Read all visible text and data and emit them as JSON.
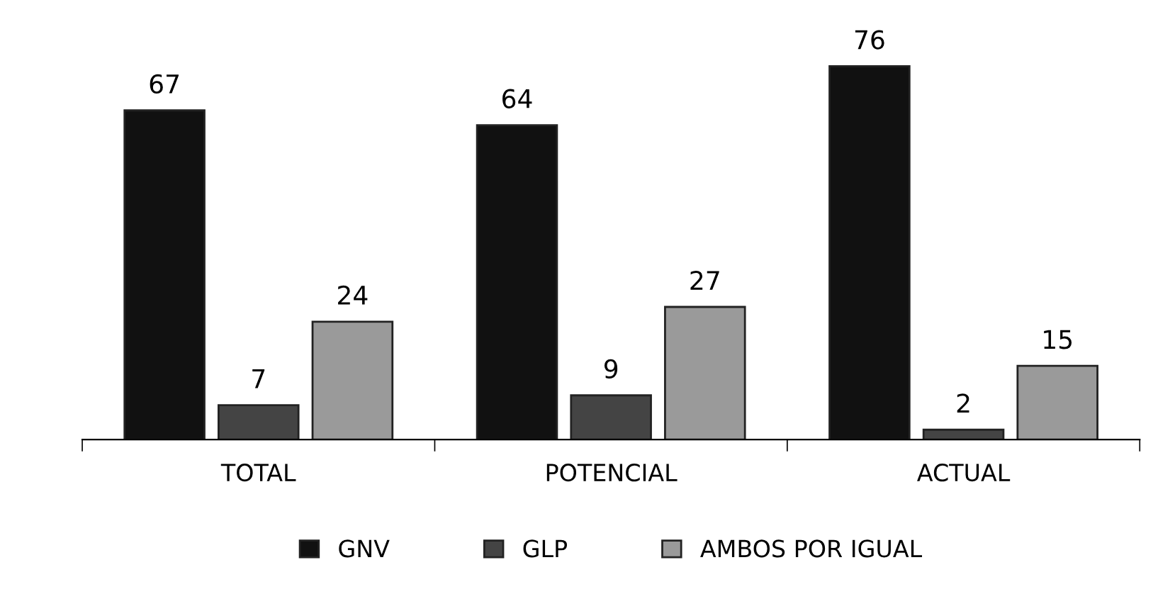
{
  "chart_data": {
    "type": "bar",
    "categories": [
      "TOTAL",
      "POTENCIAL",
      "ACTUAL"
    ],
    "series": [
      {
        "name": "GNV",
        "color": "#111111",
        "values": [
          67,
          64,
          76
        ]
      },
      {
        "name": "GLP",
        "color": "#444444",
        "values": [
          7,
          9,
          2
        ]
      },
      {
        "name": "AMBOS POR IGUAL",
        "color": "#9a9a9a",
        "values": [
          24,
          27,
          15
        ]
      }
    ],
    "data_labels": true,
    "legend": "bottom",
    "grid": false
  }
}
